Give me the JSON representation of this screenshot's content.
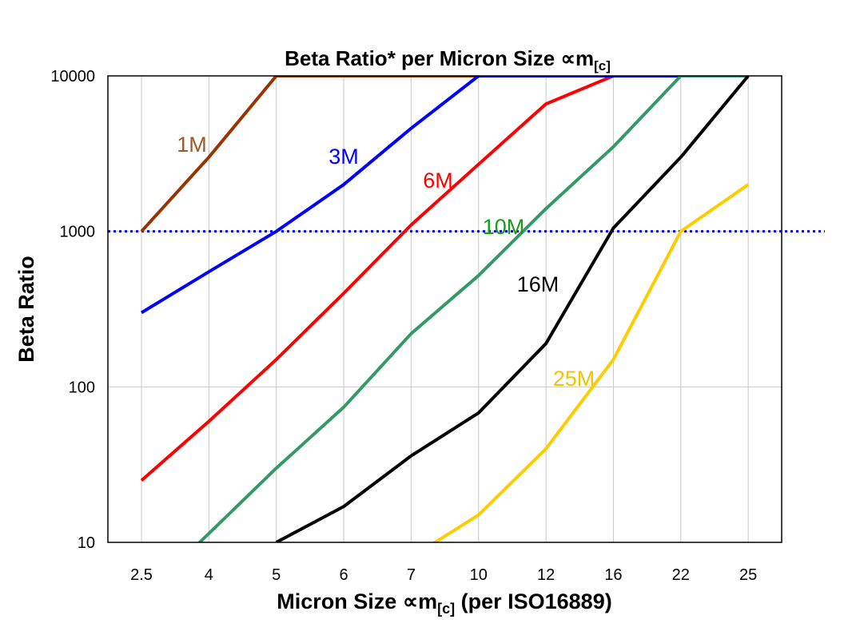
{
  "chart_data": {
    "type": "line",
    "title": "Beta Ratio* per Micron Size ∝m",
    "title_sub": "[c]",
    "xlabel": "Micron Size ∝m",
    "xlabel_sub": "[c]",
    "xlabel_suffix": " (per ISO16889)",
    "ylabel": "Beta Ratio",
    "y_scale": "log",
    "ylim": [
      10,
      10000
    ],
    "y_ticks": [
      "10000",
      "1000",
      "100",
      "10"
    ],
    "y_tick_values": [
      10000,
      1000,
      100,
      10
    ],
    "categories": [
      "2.5",
      "4",
      "5",
      "6",
      "7",
      "10",
      "12",
      "16",
      "22",
      "25"
    ],
    "grid": true,
    "reference_line": {
      "value": 1000,
      "color": "#0000FF",
      "style": "dotted"
    },
    "series": [
      {
        "name": "1M",
        "color": "#993300",
        "label_color": "#9C5A2C",
        "values": [
          1000,
          3000,
          10000,
          10000,
          10000,
          10000,
          null,
          null,
          null,
          null
        ]
      },
      {
        "name": "6M",
        "color": "#FF0000",
        "label_color": "#FF0000",
        "values": [
          25,
          60,
          150,
          400,
          1100,
          2700,
          6600,
          10000,
          null,
          null
        ]
      },
      {
        "name": "3M",
        "color": "#0000FF",
        "label_color": "#0000FF",
        "values": [
          300,
          550,
          1000,
          2000,
          4600,
          10000,
          10000,
          10000,
          10000,
          10000
        ]
      },
      {
        "name": "10M",
        "color": "#339966",
        "label_color": "#1A9A1A",
        "values": [
          4.4,
          11.4,
          30,
          74,
          220,
          520,
          1400,
          3500,
          10000,
          10000
        ]
      },
      {
        "name": "16M",
        "color": "#000000",
        "label_color": "#000000",
        "values": [
          null,
          null,
          10,
          17,
          36,
          68,
          190,
          1050,
          3000,
          10000
        ]
      },
      {
        "name": "25M",
        "color": "#FFCC00",
        "label_color": "#F5C400",
        "values": [
          null,
          null,
          null,
          null,
          8,
          15,
          40,
          150,
          1000,
          2000
        ]
      }
    ]
  }
}
